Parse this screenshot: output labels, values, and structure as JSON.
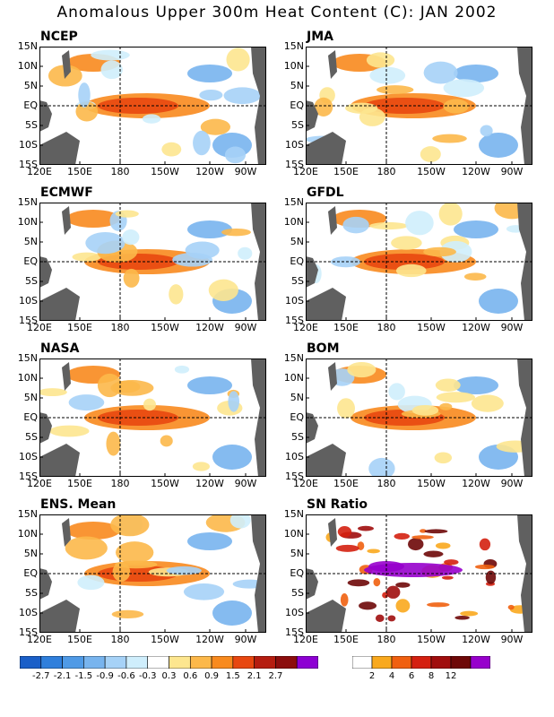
{
  "title": "Anomalous Upper 300m Heat Content (C): JAN 2002",
  "panels": [
    {
      "label": "NCEP"
    },
    {
      "label": "JMA"
    },
    {
      "label": "ECMWF"
    },
    {
      "label": "GFDL"
    },
    {
      "label": "NASA"
    },
    {
      "label": "BOM"
    },
    {
      "label": "ENS. Mean"
    },
    {
      "label": "SN Ratio"
    }
  ],
  "lat_labels": [
    "15N",
    "10N",
    "5N",
    "EQ",
    "5S",
    "10S",
    "15S"
  ],
  "lon_labels": [
    "120E",
    "150E",
    "180",
    "150W",
    "120W",
    "90W"
  ],
  "colorbar_anomaly": {
    "labels": [
      "-2.7",
      "-2.1",
      "-1.5",
      "-0.9",
      "-0.6",
      "-0.3",
      "0.3",
      "0.6",
      "0.9",
      "1.5",
      "2.1",
      "2.7"
    ],
    "colors": [
      "#1a5fc8",
      "#2f7fdc",
      "#4f9ae6",
      "#78b4ee",
      "#a6d2f7",
      "#cfeefc",
      "#ffffff",
      "#fde68f",
      "#fcb84a",
      "#f88a1e",
      "#e84710",
      "#b51d10",
      "#8c0d0d",
      "#8d00d3"
    ]
  },
  "colorbar_sn": {
    "labels": [
      "2",
      "4",
      "6",
      "8",
      "12"
    ],
    "colors": [
      "#ffffff",
      "#f9a91e",
      "#f06010",
      "#d42010",
      "#a00d0d",
      "#6e0808",
      "#9700cc"
    ]
  },
  "colors": {
    "land": "#606060",
    "frame": "#000000"
  }
}
